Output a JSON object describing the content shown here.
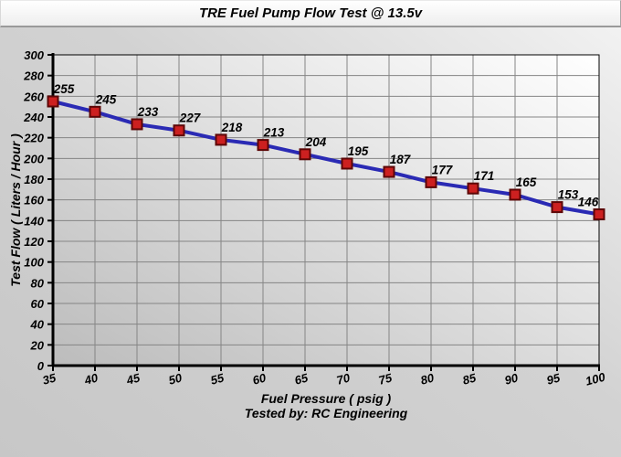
{
  "title": "TRE Fuel Pump Flow Test @ 13.5v",
  "footer": {
    "tested_by": "Tested by: RC Engineering"
  },
  "chart_data": {
    "type": "line",
    "title": "TRE Fuel Pump Flow Test @ 13.5v",
    "xlabel": "Fuel Pressure ( psig )",
    "ylabel": "Test Flow ( Liters / Hour )",
    "x": [
      35,
      40,
      45,
      50,
      55,
      60,
      65,
      70,
      75,
      80,
      85,
      90,
      95,
      100
    ],
    "values": [
      255,
      245,
      233,
      227,
      218,
      213,
      204,
      195,
      187,
      177,
      171,
      165,
      153,
      146
    ],
    "data_labels": [
      "255",
      "245",
      "233",
      "227",
      "218",
      "213",
      "204",
      "195",
      "187",
      "177",
      "171",
      "165",
      "153",
      "146"
    ],
    "xticks": [
      "35",
      "40",
      "45",
      "50",
      "55",
      "60",
      "65",
      "70",
      "75",
      "80",
      "85",
      "90",
      "95",
      "100"
    ],
    "yticks": [
      "0",
      "20",
      "40",
      "60",
      "80",
      "100",
      "120",
      "140",
      "160",
      "180",
      "200",
      "220",
      "240",
      "260",
      "280",
      "300"
    ],
    "xlim": [
      35,
      100
    ],
    "ylim": [
      0,
      300
    ],
    "grid": true,
    "legend": "none",
    "colors": {
      "line": "#2a2ab4",
      "marker_fill": "#cc2020",
      "marker_border": "#5c0606",
      "grid": "#858585",
      "axis": "#000000",
      "text": "#000000",
      "plot_bg_dark": "#bcbcbc",
      "plot_bg_light": "#ffffff"
    }
  }
}
